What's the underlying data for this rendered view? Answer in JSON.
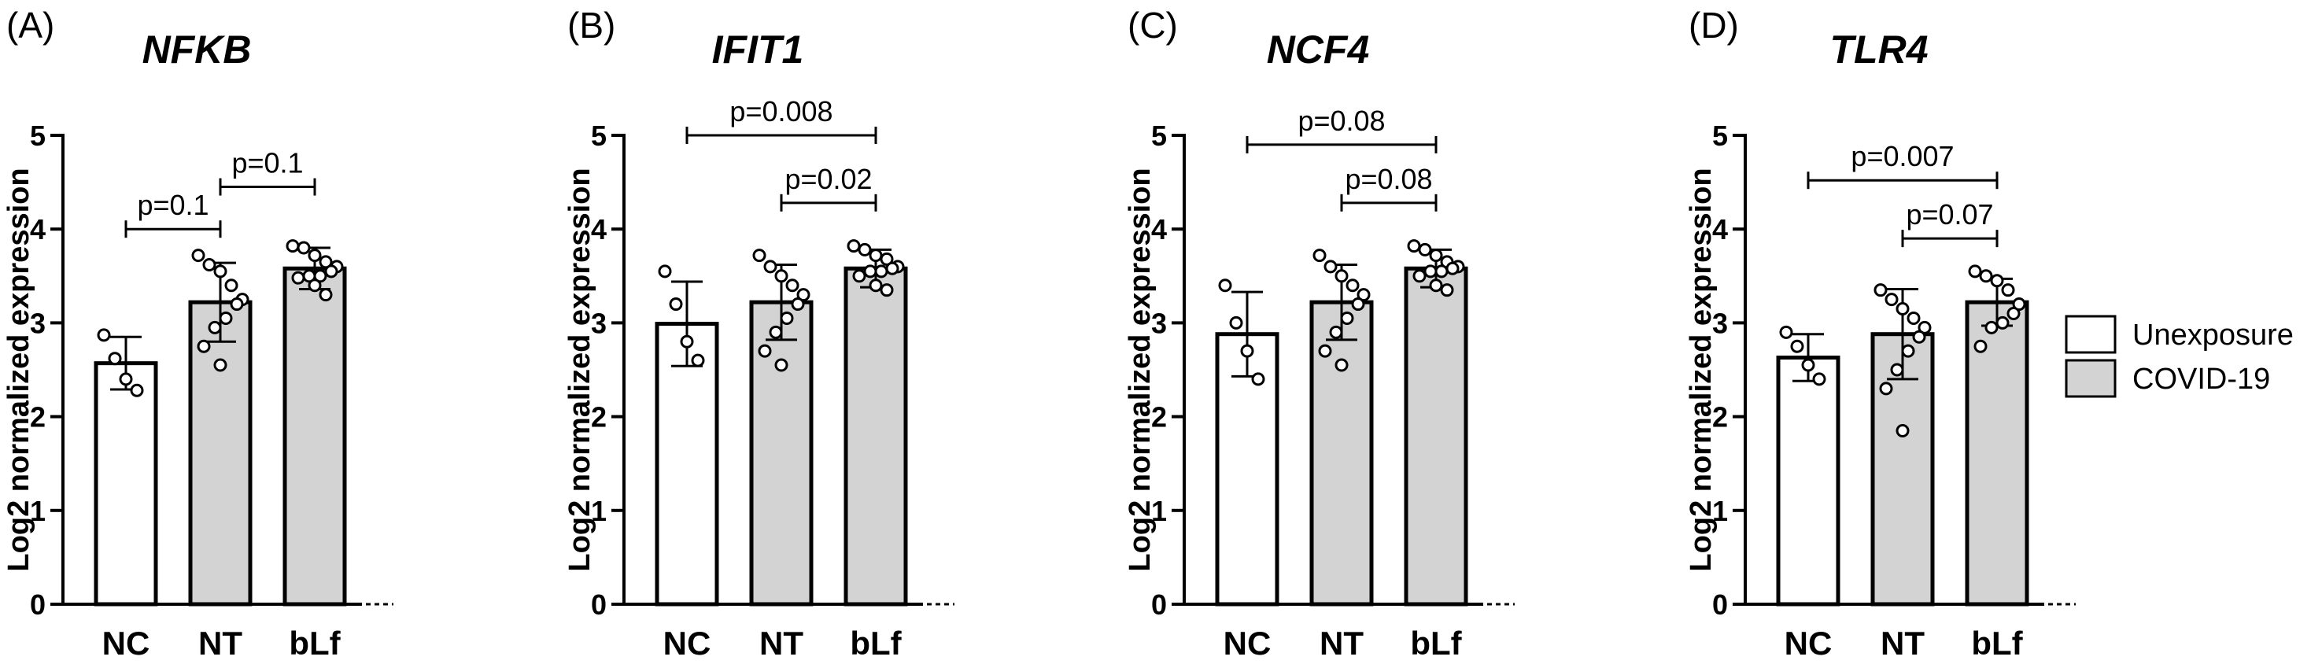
{
  "legend": [
    {
      "label": "Unexposure",
      "color": "#ffffff"
    },
    {
      "label": "COVID-19",
      "color": "#d3d3d3"
    }
  ],
  "chart_data": [
    {
      "type": "bar",
      "panel": "(A)",
      "title": "NFKB",
      "ylabel": "Log2 normalized expression",
      "ylim": [
        0,
        5
      ],
      "yticks": [
        "0",
        "1",
        "2",
        "3",
        "4",
        "5"
      ],
      "categories": [
        "NC",
        "NT",
        "bLf"
      ],
      "groups": [
        "Unexposure",
        "COVID-19",
        "COVID-19"
      ],
      "values": [
        2.57,
        3.22,
        3.58
      ],
      "errors": [
        0.28,
        0.42,
        0.22
      ],
      "points": [
        [
          2.87,
          2.62,
          2.4,
          2.28
        ],
        [
          3.72,
          3.62,
          3.55,
          3.4,
          3.25,
          3.2,
          3.05,
          2.95,
          2.75,
          2.55
        ],
        [
          3.82,
          3.8,
          3.72,
          3.65,
          3.6,
          3.55,
          3.5,
          3.5,
          3.48,
          3.4,
          3.3
        ]
      ],
      "comparisons": [
        {
          "from": 0,
          "to": 1,
          "y": 4.0,
          "label": "p=0.1"
        },
        {
          "from": 1,
          "to": 2,
          "y": 4.45,
          "label": "p=0.1"
        }
      ]
    },
    {
      "type": "bar",
      "panel": "(B)",
      "title": "IFIT1",
      "ylabel": "Log2 normalized expression",
      "ylim": [
        0,
        5
      ],
      "yticks": [
        "0",
        "1",
        "2",
        "3",
        "4",
        "5"
      ],
      "categories": [
        "NC",
        "NT",
        "bLf"
      ],
      "groups": [
        "Unexposure",
        "COVID-19",
        "COVID-19"
      ],
      "values": [
        2.99,
        3.22,
        3.58
      ],
      "errors": [
        0.45,
        0.4,
        0.2
      ],
      "points": [
        [
          3.55,
          3.2,
          2.8,
          2.6
        ],
        [
          3.72,
          3.6,
          3.5,
          3.4,
          3.3,
          3.2,
          3.05,
          2.9,
          2.7,
          2.55
        ],
        [
          3.82,
          3.78,
          3.72,
          3.68,
          3.6,
          3.58,
          3.55,
          3.55,
          3.5,
          3.4,
          3.35
        ]
      ],
      "comparisons": [
        {
          "from": 0,
          "to": 2,
          "y": 5.0,
          "label": "p=0.008"
        },
        {
          "from": 1,
          "to": 2,
          "y": 4.28,
          "label": "p=0.02"
        }
      ]
    },
    {
      "type": "bar",
      "panel": "(C)",
      "title": "NCF4",
      "ylabel": "Log2 normalized expression",
      "ylim": [
        0,
        5
      ],
      "yticks": [
        "0",
        "1",
        "2",
        "3",
        "4",
        "5"
      ],
      "categories": [
        "NC",
        "NT",
        "bLf"
      ],
      "groups": [
        "Unexposure",
        "COVID-19",
        "COVID-19"
      ],
      "values": [
        2.88,
        3.22,
        3.58
      ],
      "errors": [
        0.45,
        0.4,
        0.2
      ],
      "points": [
        [
          3.4,
          3.0,
          2.7,
          2.4
        ],
        [
          3.72,
          3.6,
          3.5,
          3.4,
          3.3,
          3.2,
          3.05,
          2.9,
          2.7,
          2.55
        ],
        [
          3.82,
          3.78,
          3.72,
          3.65,
          3.6,
          3.58,
          3.55,
          3.55,
          3.5,
          3.4,
          3.35
        ]
      ],
      "comparisons": [
        {
          "from": 0,
          "to": 2,
          "y": 4.9,
          "label": "p=0.08"
        },
        {
          "from": 1,
          "to": 2,
          "y": 4.28,
          "label": "p=0.08"
        }
      ]
    },
    {
      "type": "bar",
      "panel": "(D)",
      "title": "TLR4",
      "ylabel": "Log2 normalized expression",
      "ylim": [
        0,
        5
      ],
      "yticks": [
        "0",
        "1",
        "2",
        "3",
        "4",
        "5"
      ],
      "categories": [
        "NC",
        "NT",
        "bLf"
      ],
      "groups": [
        "Unexposure",
        "COVID-19",
        "COVID-19"
      ],
      "values": [
        2.63,
        2.88,
        3.22
      ],
      "errors": [
        0.25,
        0.48,
        0.25
      ],
      "points": [
        [
          2.9,
          2.75,
          2.55,
          2.4
        ],
        [
          3.35,
          3.25,
          3.15,
          3.05,
          2.95,
          2.85,
          2.7,
          2.5,
          2.3,
          1.85
        ],
        [
          3.55,
          3.5,
          3.45,
          3.35,
          3.2,
          3.1,
          3.0,
          2.95,
          2.75
        ]
      ],
      "comparisons": [
        {
          "from": 0,
          "to": 2,
          "y": 4.52,
          "label": "p=0.007"
        },
        {
          "from": 1,
          "to": 2,
          "y": 3.9,
          "label": "p=0.07"
        }
      ]
    }
  ]
}
